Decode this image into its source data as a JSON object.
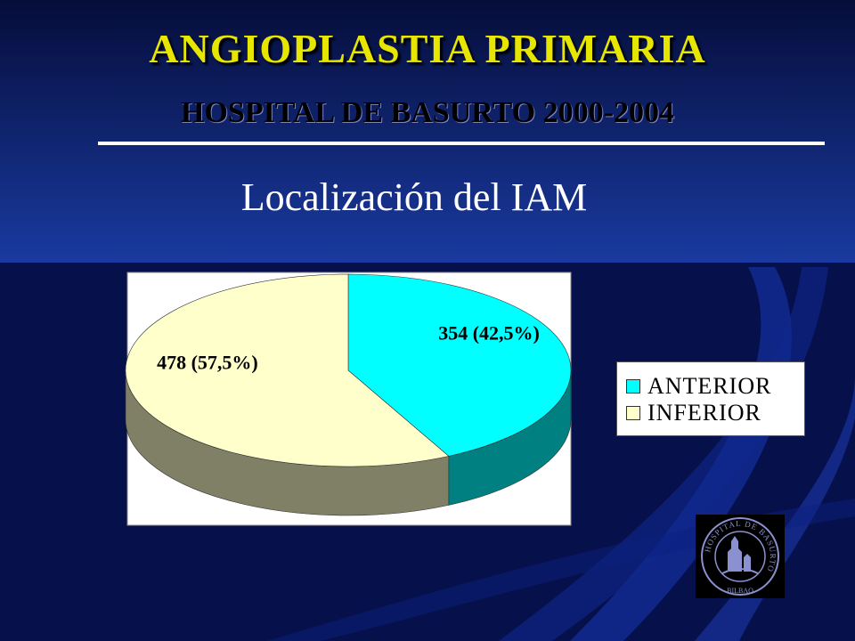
{
  "header": {
    "title": "ANGIOPLASTIA PRIMARIA",
    "hospital_line": "HOSPITAL DE BASURTO 2000-2004"
  },
  "slide": {
    "subtitle": "Localización del IAM"
  },
  "colors": {
    "background": "#07114a",
    "title_yellow": "#e6e600",
    "anterior_top": "#00ffff",
    "anterior_side": "#008080",
    "inferior_top": "#ffffcc",
    "inferior_side": "#808066"
  },
  "chart_data": {
    "type": "pie",
    "slices": [
      {
        "name": "ANTERIOR",
        "value": 354,
        "label": "354 (42,5%)",
        "color": "#00ffff"
      },
      {
        "name": "INFERIOR",
        "value": 478,
        "label": "478 (57,5%)",
        "color": "#ffffcc"
      }
    ],
    "legend": [
      "ANTERIOR",
      "INFERIOR"
    ],
    "legend_position": "right",
    "style": "3d"
  },
  "logo": {
    "ring_text": "HOSPITAL DE BASURTO",
    "bottom_text": "BILBAO",
    "icon": "hospital-seal-icon"
  }
}
